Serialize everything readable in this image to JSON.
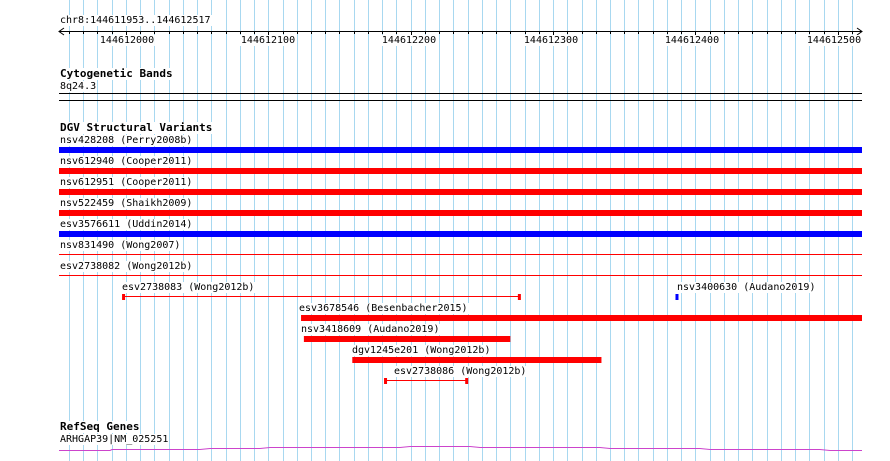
{
  "locus": "chr8:144611953..144612517",
  "ruler": {
    "ticks": [
      "144612000",
      "144612100",
      "144612200",
      "144612300",
      "144612400",
      "144612500"
    ]
  },
  "cytobands": {
    "title": "Cytogenetic Bands",
    "band": "8q24.3"
  },
  "dgv": {
    "title": "DGV Structural Variants",
    "full_rows": [
      {
        "label": "nsv428208 (Perry2008b)",
        "color": "#0000ff",
        "style": "thick"
      },
      {
        "label": "nsv612940 (Cooper2011)",
        "color": "#ff0000",
        "style": "thick"
      },
      {
        "label": "nsv612951 (Cooper2011)",
        "color": "#ff0000",
        "style": "thick"
      },
      {
        "label": "nsv522459 (Shaikh2009)",
        "color": "#ff0000",
        "style": "thick"
      },
      {
        "label": "esv3576611 (Uddin2014)",
        "color": "#0000ff",
        "style": "thick"
      },
      {
        "label": "nsv831490 (Wong2007)",
        "color": "#ff0000",
        "style": "thin"
      },
      {
        "label": "esv2738082 (Wong2012b)",
        "color": "#ff0000",
        "style": "thin"
      }
    ],
    "partial": [
      {
        "label": "esv2738083 (Wong2012b)",
        "color": "#ff0000",
        "style": "span",
        "start": 144611998,
        "end": 144612276
      },
      {
        "label": "nsv3400630 (Audano2019)",
        "color": "#0000ff",
        "style": "dot",
        "start": 144612386,
        "end": 144612388
      },
      {
        "label": "esv3678546 (Besenbacher2015)",
        "color": "#ff0000",
        "style": "thick",
        "start": 144612123,
        "end": 144612517
      },
      {
        "label": "nsv3418609 (Audano2019)",
        "color": "#ff0000",
        "style": "thick",
        "start": 144612125,
        "end": 144612270
      },
      {
        "label": "dgv1245e201 (Wong2012b)",
        "color": "#ff0000",
        "style": "thick",
        "start": 144612159,
        "end": 144612334
      },
      {
        "label": "esv2738086 (Wong2012b)",
        "color": "#ff0000",
        "style": "span",
        "start": 144612182,
        "end": 144612239
      }
    ]
  },
  "refseq": {
    "title": "RefSeq Genes",
    "gene": "ARHGAP39|NM_025251",
    "color": "#cc44cc"
  },
  "colors": {
    "grid": "#a8d8f0",
    "rule": "#000000"
  }
}
